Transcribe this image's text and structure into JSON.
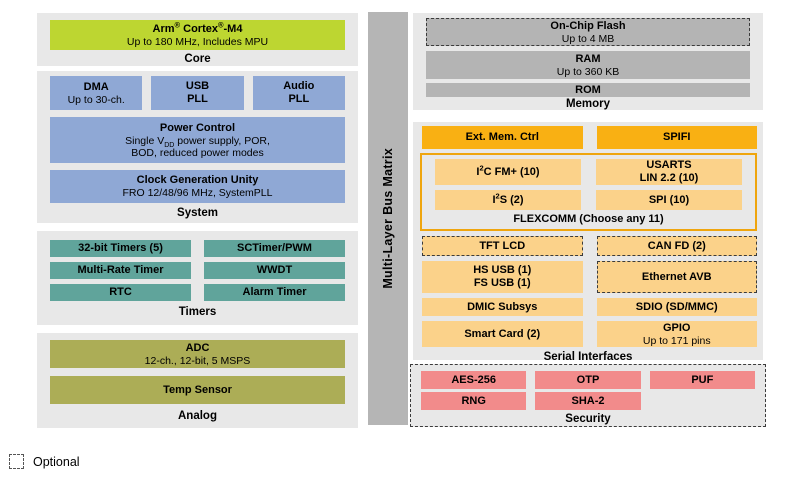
{
  "palette": {
    "section_bg": "#e8e8e8",
    "core_green": "#bdd631",
    "system_blue": "#8fa8d5",
    "timers_teal": "#60a49b",
    "analog_olive": "#acad56",
    "memory_gray": "#b4b4b4",
    "bus_gray": "#b5b5b5",
    "orange": "#f9b013",
    "light_orange": "#fbd28a",
    "flexcomm_border": "#efa50e",
    "security_pink": "#f28b8b"
  },
  "bus": {
    "label": "Multi-Layer Bus Matrix"
  },
  "core": {
    "label": "Core",
    "cpu": {
      "t1": "Arm",
      "reg": "®",
      "t2": " Cortex",
      "t3": "-M4",
      "sub": "Up to 180 MHz, Includes MPU"
    }
  },
  "system": {
    "label": "System",
    "dma": {
      "title": "DMA",
      "sub": "Up to 30-ch."
    },
    "usb_pll": {
      "t1": "USB",
      "t2": "PLL"
    },
    "audio_pll": {
      "t1": "Audio",
      "t2": "PLL"
    },
    "power": {
      "title": "Power Control",
      "l1_pre": "Single V",
      "l1_sub": "DD",
      "l1_post": " power supply, POR,",
      "l2": "BOD, reduced power modes"
    },
    "clock": {
      "title": "Clock Generation Unity",
      "sub": "FRO 12/48/96 MHz, SystemPLL"
    }
  },
  "timers": {
    "label": "Timers",
    "t32": "32-bit Timers (5)",
    "sctimer": "SCTimer/PWM",
    "mrt": "Multi-Rate Timer",
    "wwdt": "WWDT",
    "rtc": "RTC",
    "alarm": "Alarm Timer"
  },
  "analog": {
    "label": "Analog",
    "adc": {
      "title": "ADC",
      "sub": "12-ch., 12-bit, 5 MSPS"
    },
    "temp": {
      "title": "Temp Sensor"
    }
  },
  "memory": {
    "label": "Memory",
    "flash": {
      "title": "On-Chip Flash",
      "sub": "Up to 4 MB"
    },
    "ram": {
      "title": "RAM",
      "sub": "Up to 360 KB"
    },
    "rom": {
      "title": "ROM"
    }
  },
  "serial": {
    "label": "Serial Interfaces",
    "ext_mem": "Ext. Mem. Ctrl",
    "spifi": "SPIFI",
    "flexcomm": {
      "label": "FLEXCOMM (Choose any 11)",
      "i2c": {
        "pre": "I",
        "sup": "2",
        "post": "C FM+ (10)"
      },
      "usarts": {
        "t1": "USARTS",
        "t2": "LIN 2.2 (10)"
      },
      "i2s": {
        "pre": "I",
        "sup": "2",
        "post": "S (2)"
      },
      "spi": "SPI (10)"
    },
    "tft": "TFT LCD",
    "canfd": "CAN FD (2)",
    "usb": {
      "t1": "HS USB (1)",
      "t2": "FS USB (1)"
    },
    "eth": "Ethernet AVB",
    "dmic": "DMIC Subsys",
    "sdio": "SDIO (SD/MMC)",
    "smart": "Smart Card (2)",
    "gpio": {
      "title": "GPIO",
      "sub": "Up to 171 pins"
    }
  },
  "security": {
    "label": "Security",
    "aes": "AES-256",
    "otp": "OTP",
    "puf": "PUF",
    "rng": "RNG",
    "sha": "SHA-2"
  },
  "legend": {
    "optional": "Optional"
  }
}
